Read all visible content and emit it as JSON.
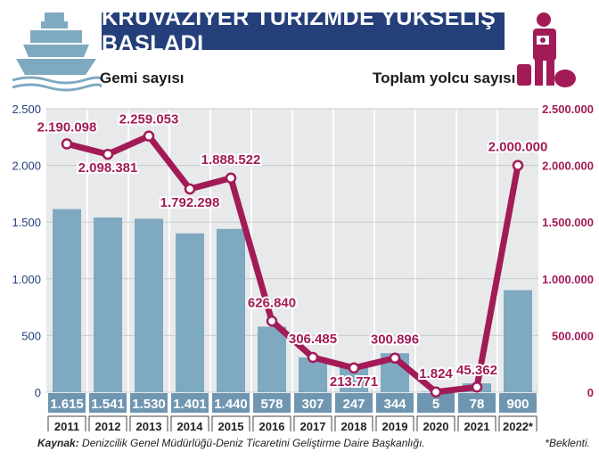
{
  "title": "KRUVAZİYER TURİZMDE YÜKSELİŞ BAŞLADI",
  "legend": {
    "left": "Gemi sayısı",
    "right": "Toplam yolcu sayısı"
  },
  "source_label": "Kaynak:",
  "source_text": "Denizcilik Genel Müdürlüğü-Deniz Ticaretini Geliştirme Daire Başkanlığı.",
  "note": "*Beklenti.",
  "colors": {
    "title_bg": "#243f7a",
    "bar": "#7fa9c1",
    "line": "#a21b57",
    "plot_bg": "#e8e9ea",
    "label_box": "#6f96b0"
  },
  "chart_data": {
    "type": "bar+line",
    "categories": [
      "2011",
      "2012",
      "2013",
      "2014",
      "2015",
      "2016",
      "2017",
      "2018",
      "2019",
      "2020",
      "2021",
      "2022*"
    ],
    "series": [
      {
        "name": "Gemi sayısı",
        "axis": "left",
        "type": "bar",
        "values": [
          1615,
          1541,
          1530,
          1401,
          1440,
          578,
          307,
          247,
          344,
          5,
          78,
          900
        ],
        "labels": [
          "1.615",
          "1.541",
          "1.530",
          "1.401",
          "1.440",
          "578",
          "307",
          "247",
          "344",
          "5",
          "78",
          "900"
        ]
      },
      {
        "name": "Toplam yolcu sayısı",
        "axis": "right",
        "type": "line",
        "values": [
          2190098,
          2098381,
          2259053,
          1792298,
          1888522,
          626840,
          306485,
          213771,
          300896,
          1824,
          45362,
          2000000
        ],
        "labels": [
          "2.190.098",
          "2.098.381",
          "2.259.053",
          "1.792.298",
          "1.888.522",
          "626.840",
          "306.485",
          "213.771",
          "300.896",
          "1.824",
          "45.362",
          "2.000.000"
        ]
      }
    ],
    "left_axis": {
      "ylim": [
        0,
        2500
      ],
      "ticks": [
        0,
        500,
        1000,
        1500,
        2000,
        2500
      ],
      "tick_labels": [
        "0",
        "500",
        "1.000",
        "1.500",
        "2.000",
        "2.500"
      ]
    },
    "right_axis": {
      "ylim": [
        0,
        2500000
      ],
      "ticks": [
        0,
        500000,
        1000000,
        1500000,
        2000000,
        2500000
      ],
      "tick_labels": [
        "0",
        "500.000",
        "1.000.000",
        "1.500.000",
        "2.000.000",
        "2.500.000"
      ]
    },
    "grid": true
  }
}
